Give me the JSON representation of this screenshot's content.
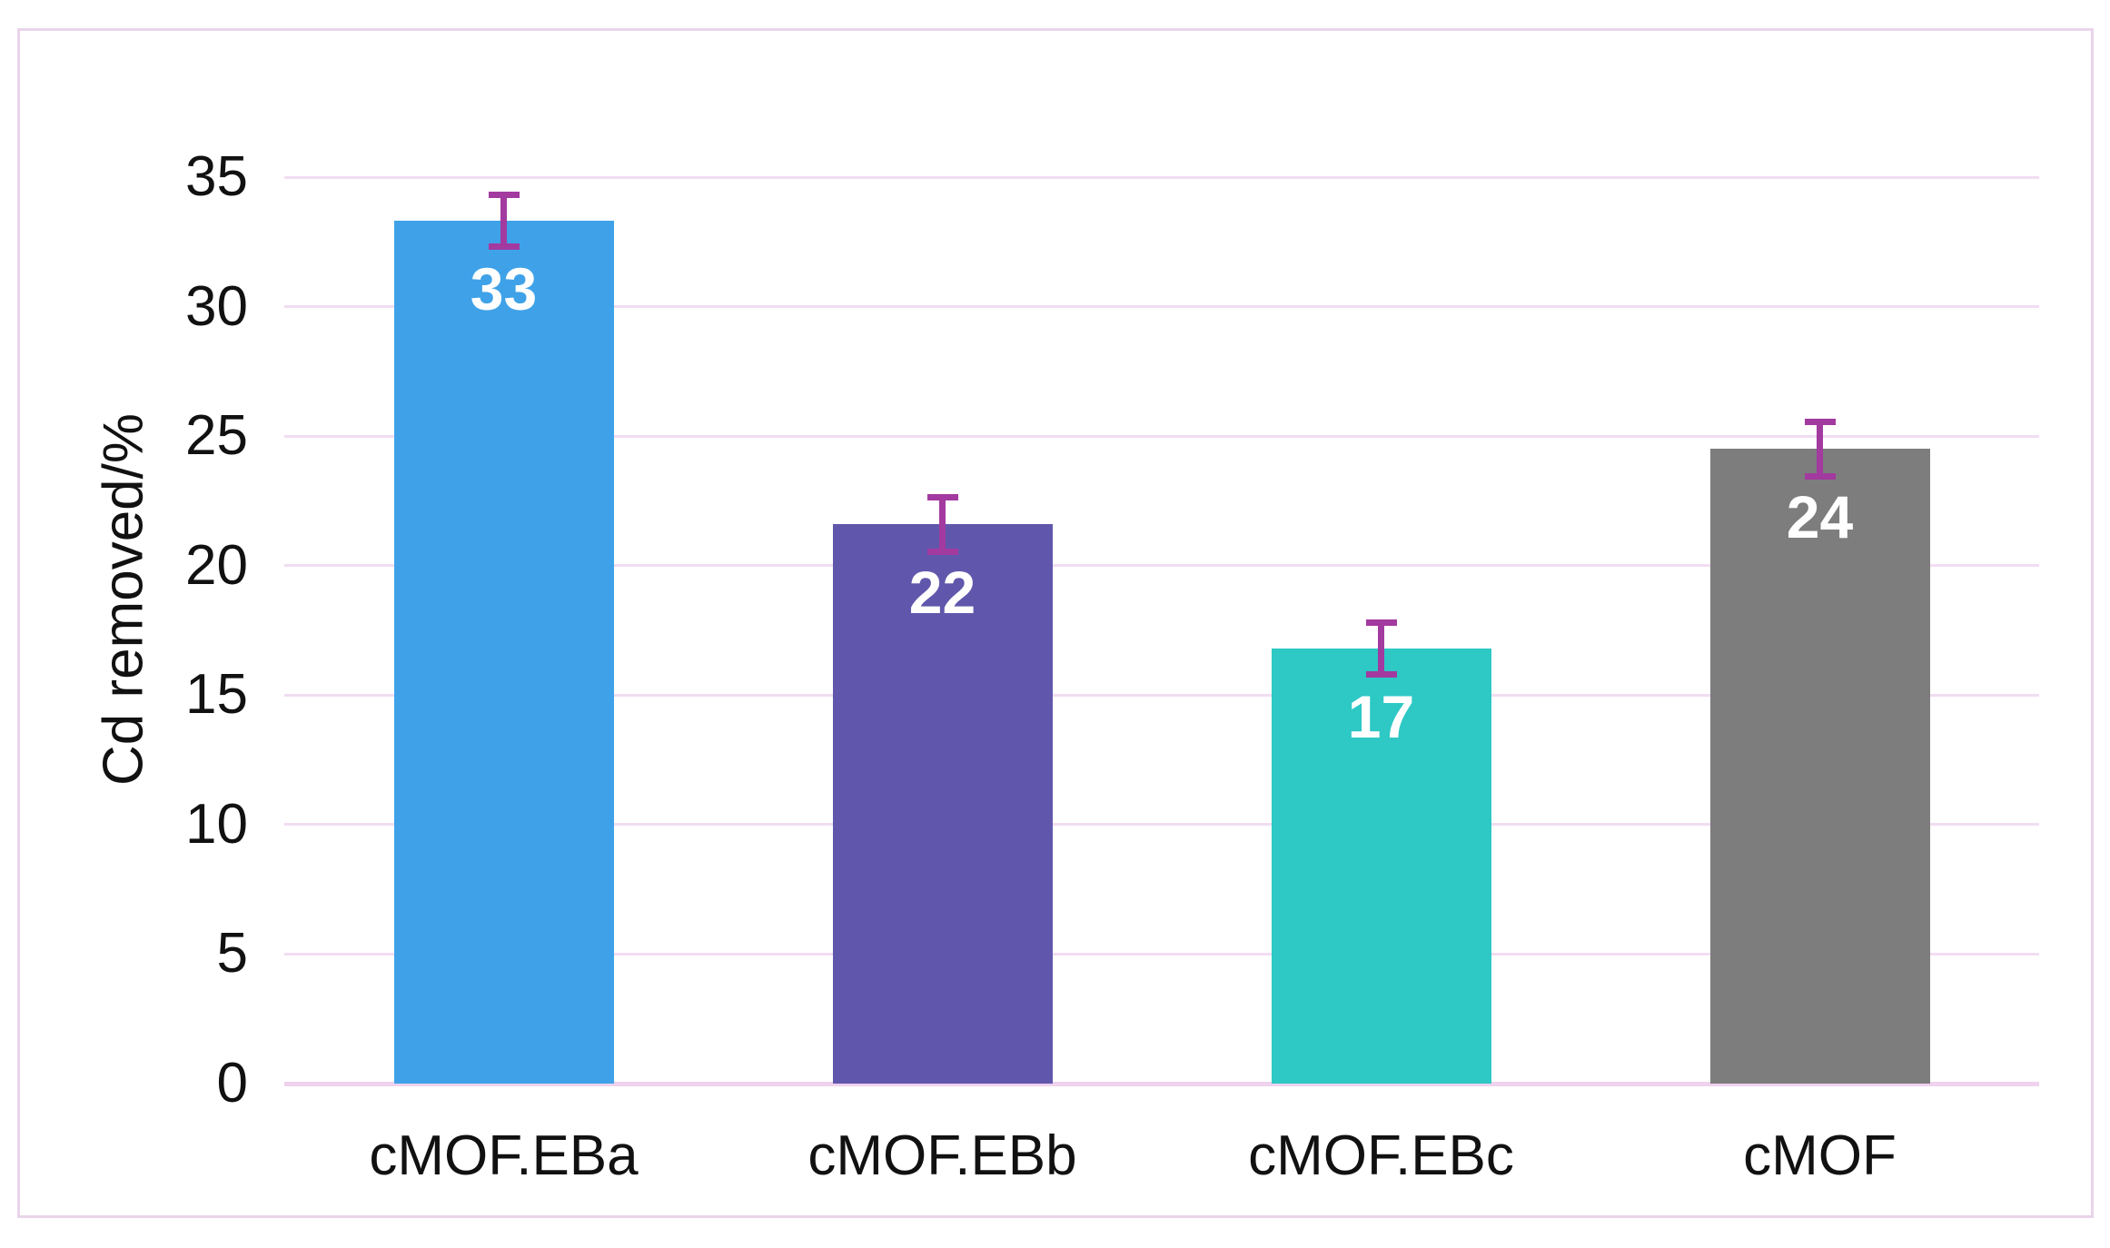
{
  "chart_data": {
    "type": "bar",
    "title": "",
    "xlabel": "",
    "ylabel": "Cd removed/%",
    "categories": [
      "cMOF.EBa",
      "cMOF.EBb",
      "cMOF.EBc",
      "cMOF"
    ],
    "values": [
      33.3,
      21.6,
      16.8,
      24.5
    ],
    "bar_labels": [
      "33",
      "22",
      "17",
      "24"
    ],
    "error_bars": [
      1.0,
      1.05,
      1.0,
      1.05
    ],
    "ylim": [
      0,
      35
    ],
    "yticks": [
      0,
      5,
      10,
      15,
      20,
      25,
      30,
      35
    ],
    "grid": true,
    "legend": false,
    "bar_colors": [
      "#3fa2e8",
      "#6057ac",
      "#2ec8c5",
      "#7d7d7d"
    ],
    "error_bar_color": "#a23aa0",
    "gridline_color": "#f1ddf2",
    "baseline_color": "#efd2ee",
    "frame_border_color": "#e9d4ea",
    "data_label_color": "#ffffff",
    "tick_label_color": "#111111"
  }
}
